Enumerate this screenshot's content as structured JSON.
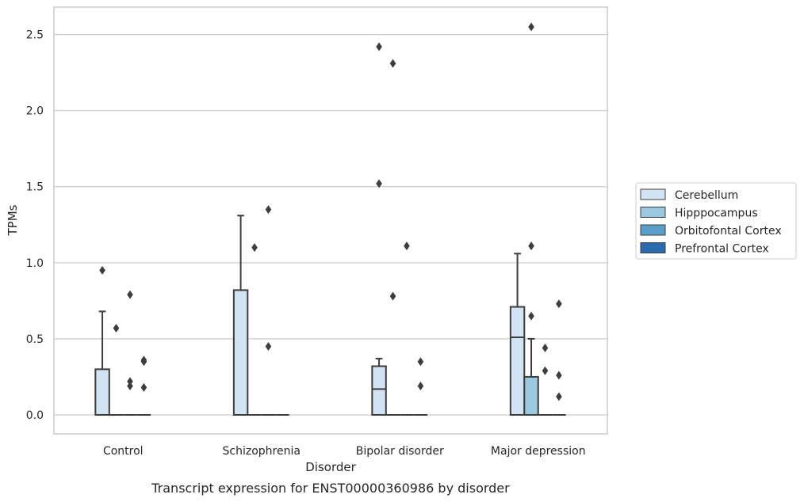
{
  "chart_data": {
    "type": "box",
    "title": "Transcript expression for ENST00000360986 by disorder",
    "xlabel": "Disorder",
    "ylabel": "TPMs",
    "ylim": [
      -0.125,
      2.68
    ],
    "yticks": [
      "0.0",
      "0.5",
      "1.0",
      "1.5",
      "2.0",
      "2.5"
    ],
    "grid": true,
    "legend_position": "right",
    "categories": [
      "Control",
      "Schizophrenia",
      "Bipolar disorder",
      "Major depression"
    ],
    "series": [
      {
        "name": "Cerebellum",
        "color": "#d2e3f3",
        "boxes": [
          {
            "q1": 0,
            "median": 0,
            "q3": 0.3,
            "whisker_low": 0,
            "whisker_high": 0.68,
            "outliers": [
              0.95
            ]
          },
          {
            "q1": 0,
            "median": 0,
            "q3": 0.82,
            "whisker_low": 0,
            "whisker_high": 1.31,
            "outliers": []
          },
          {
            "q1": 0,
            "median": 0.17,
            "q3": 0.32,
            "whisker_low": 0,
            "whisker_high": 0.37,
            "outliers": [
              2.42,
              1.52
            ]
          },
          {
            "q1": 0,
            "median": 0.51,
            "q3": 0.71,
            "whisker_low": 0,
            "whisker_high": 1.06,
            "outliers": []
          }
        ]
      },
      {
        "name": "Hipppocampus",
        "color": "#9ac8e0",
        "boxes": [
          {
            "q1": 0,
            "median": 0,
            "q3": 0,
            "whisker_low": 0,
            "whisker_high": 0,
            "outliers": [
              0.57
            ]
          },
          {
            "q1": 0,
            "median": 0,
            "q3": 0,
            "whisker_low": 0,
            "whisker_high": 0,
            "outliers": [
              1.1
            ]
          },
          {
            "q1": 0,
            "median": 0,
            "q3": 0,
            "whisker_low": 0,
            "whisker_high": 0,
            "outliers": [
              2.31,
              0.78
            ]
          },
          {
            "q1": 0,
            "median": 0,
            "q3": 0.25,
            "whisker_low": 0,
            "whisker_high": 0.5,
            "outliers": [
              2.55,
              1.11,
              0.65
            ]
          }
        ]
      },
      {
        "name": "Orbitofontal Cortex",
        "color": "#5a9ec9",
        "boxes": [
          {
            "q1": 0,
            "median": 0,
            "q3": 0,
            "whisker_low": 0,
            "whisker_high": 0,
            "outliers": [
              0.79,
              0.22,
              0.19
            ]
          },
          {
            "q1": 0,
            "median": 0,
            "q3": 0,
            "whisker_low": 0,
            "whisker_high": 0,
            "outliers": [
              1.35,
              0.45
            ]
          },
          {
            "q1": 0,
            "median": 0,
            "q3": 0,
            "whisker_low": 0,
            "whisker_high": 0,
            "outliers": [
              1.11
            ]
          },
          {
            "q1": 0,
            "median": 0,
            "q3": 0,
            "whisker_low": 0,
            "whisker_high": 0,
            "outliers": [
              0.44,
              0.29
            ]
          }
        ]
      },
      {
        "name": "Prefrontal Cortex",
        "color": "#2b6aac",
        "boxes": [
          {
            "q1": 0,
            "median": 0,
            "q3": 0,
            "whisker_low": 0,
            "whisker_high": 0,
            "outliers": [
              0.36,
              0.35,
              0.18
            ]
          },
          {
            "q1": 0,
            "median": 0,
            "q3": 0,
            "whisker_low": 0,
            "whisker_high": 0,
            "outliers": []
          },
          {
            "q1": 0,
            "median": 0,
            "q3": 0,
            "whisker_low": 0,
            "whisker_high": 0,
            "outliers": [
              0.35,
              0.19
            ]
          },
          {
            "q1": 0,
            "median": 0,
            "q3": 0,
            "whisker_low": 0,
            "whisker_high": 0,
            "outliers": [
              0.73,
              0.26,
              0.12
            ]
          }
        ]
      }
    ]
  }
}
